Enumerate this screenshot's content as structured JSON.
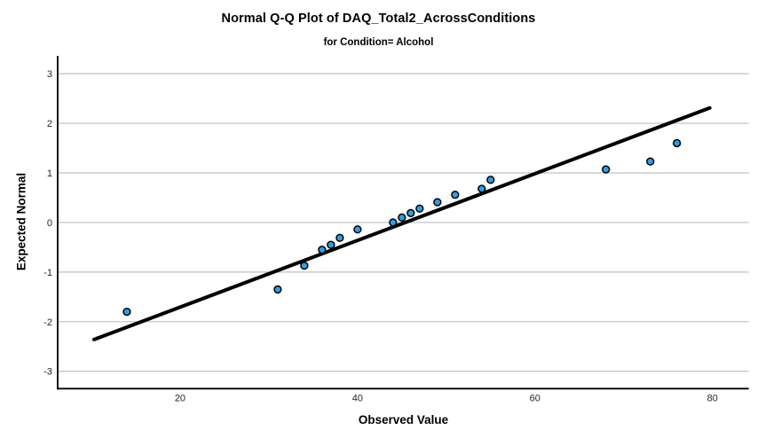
{
  "title": "Normal Q-Q Plot of DAQ_Total2_AcrossConditions",
  "subtitle": "for Condition= Alcohol",
  "chart_data": {
    "type": "scatter",
    "subtype": "normal-qq-plot",
    "title": "Normal Q-Q Plot of DAQ_Total2_AcrossConditions",
    "subtitle": "for Condition= Alcohol",
    "xlabel": "Observed Value",
    "ylabel": "Expected Normal",
    "x_ticks": [
      20,
      40,
      60,
      80
    ],
    "y_ticks": [
      -3,
      -2,
      -1,
      0,
      1,
      2,
      3
    ],
    "xlim": [
      6.2,
      84.1
    ],
    "ylim": [
      -3.35,
      3.36
    ],
    "grid": "horizontal-only",
    "legend": "none",
    "points": [
      [
        14,
        -1.8
      ],
      [
        31,
        -1.35
      ],
      [
        34,
        -0.87
      ],
      [
        36,
        -0.55
      ],
      [
        37,
        -0.45
      ],
      [
        38,
        -0.31
      ],
      [
        40,
        -0.14
      ],
      [
        44,
        0.0
      ],
      [
        45,
        0.1
      ],
      [
        46,
        0.19
      ],
      [
        47,
        0.28
      ],
      [
        49,
        0.41
      ],
      [
        51,
        0.56
      ],
      [
        54,
        0.68
      ],
      [
        55,
        0.86
      ],
      [
        68,
        1.07
      ],
      [
        73,
        1.23
      ],
      [
        76,
        1.6
      ]
    ],
    "reference_line": {
      "x1": 10.3,
      "y1": -2.36,
      "x2": 79.7,
      "y2": 2.31
    },
    "colors": {
      "point_fill": "#2B9FE5",
      "point_stroke": "#000000",
      "reference_line": "#000000",
      "grid": "#BFBFBF",
      "axis": "#000000",
      "tick_text": "#262626",
      "background": "#FFFFFF"
    }
  }
}
